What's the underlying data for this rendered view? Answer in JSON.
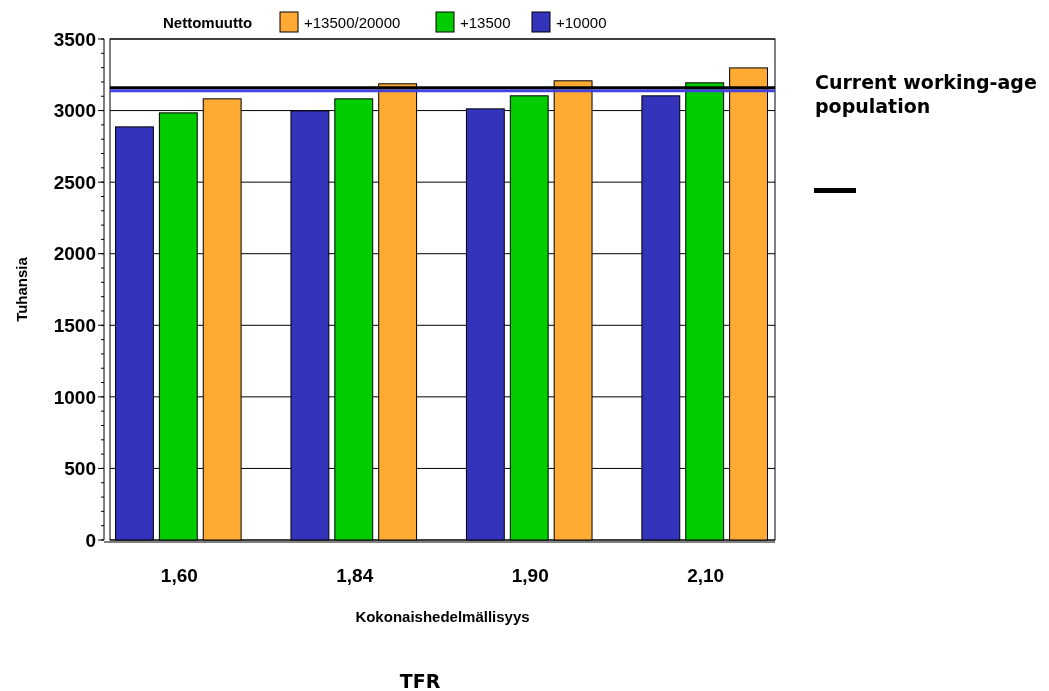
{
  "chart_data": {
    "type": "bar",
    "xlabel": "Kokonaishedelmällisyys",
    "ylabel": "Tuhansia",
    "legend_title": "Nettomuutto",
    "categories": [
      "1,60",
      "1,84",
      "1,90",
      "2,10"
    ],
    "series": [
      {
        "name": "+10000",
        "color": "#3333bb",
        "values": [
          2886,
          2998,
          3012,
          3103
        ]
      },
      {
        "name": "+13500",
        "color": "#00cc00",
        "values": [
          2984,
          3082,
          3103,
          3194
        ]
      },
      {
        "name": "+13500/20000",
        "color": "#ffaa33",
        "values": [
          3082,
          3187,
          3208,
          3298
        ]
      }
    ],
    "ylim": [
      0,
      3500
    ],
    "yticks": [
      0,
      500,
      1000,
      1500,
      2000,
      2500,
      3000,
      3500
    ],
    "grid": "y",
    "legend": "top",
    "ref_lines": [
      {
        "axis": "y",
        "value": 3159,
        "color": "#000000"
      },
      {
        "axis": "y",
        "value": 3138,
        "color": "#4444dd",
        "label": "Current working-age population"
      }
    ],
    "annotations": [
      "TFR"
    ]
  }
}
